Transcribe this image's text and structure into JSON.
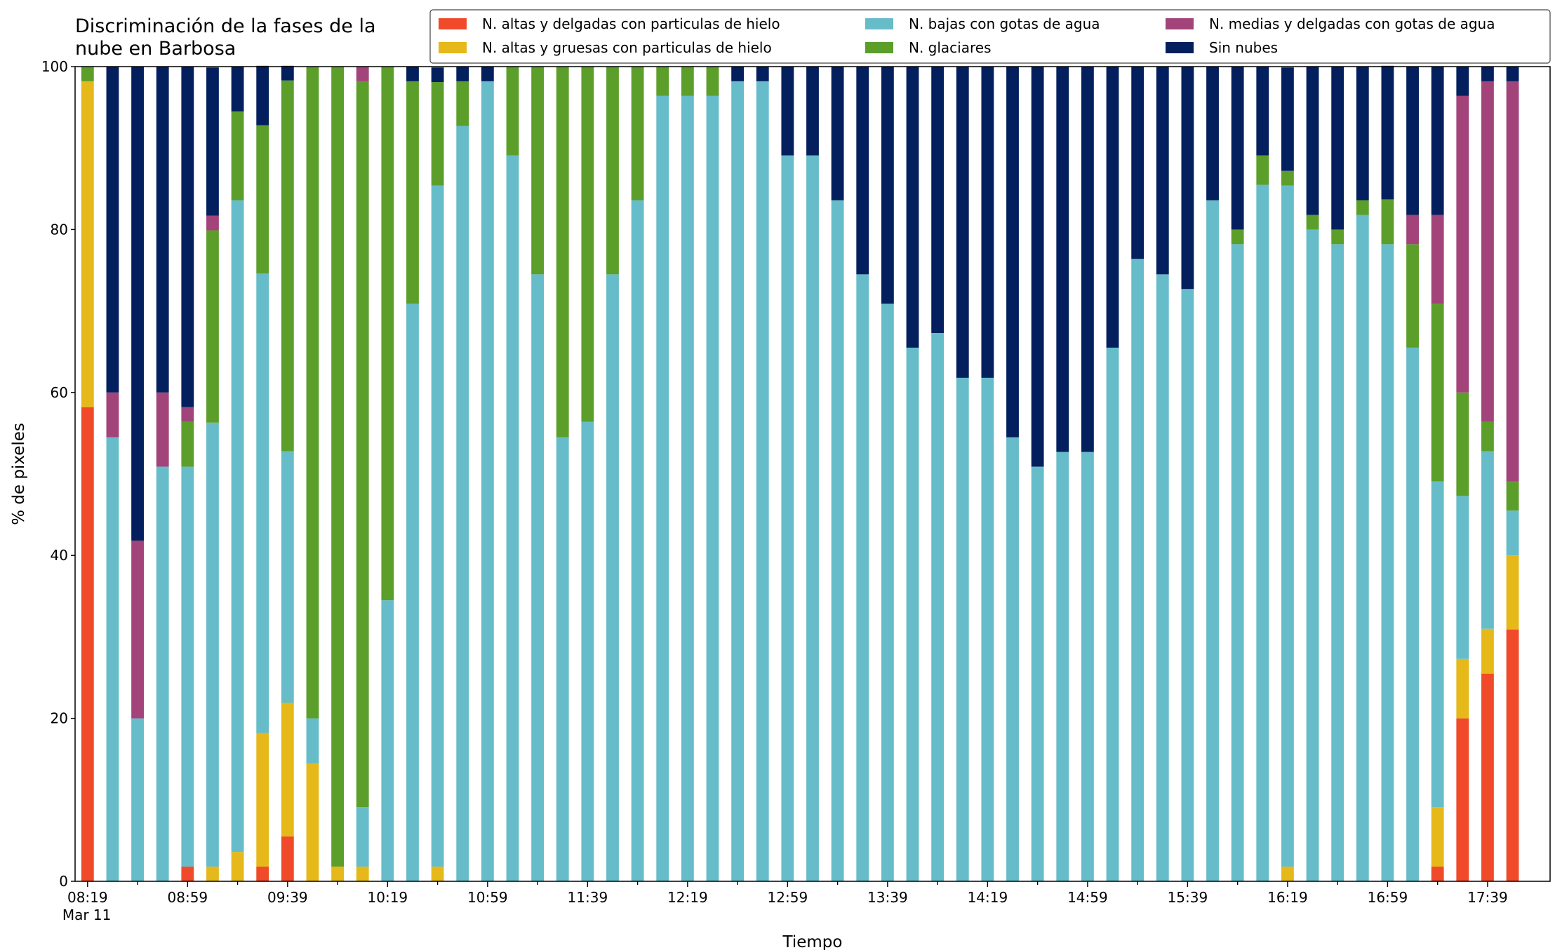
{
  "chart_data": {
    "type": "stacked_bar",
    "title": "Discriminación de la fases de la\nnube en Barbosa",
    "x_label": "Tiempo",
    "y_label": "% de pixeles",
    "date_label": "Mar 11",
    "categories": [
      "08:19",
      null,
      null,
      null,
      "08:59",
      null,
      null,
      null,
      "09:39",
      null,
      null,
      null,
      "10:19",
      null,
      null,
      null,
      "10:59",
      null,
      null,
      null,
      "11:39",
      null,
      null,
      null,
      "12:19",
      null,
      null,
      null,
      "12:59",
      null,
      null,
      null,
      "13:39",
      null,
      null,
      null,
      "14:19",
      null,
      null,
      null,
      "14:59",
      null,
      null,
      null,
      "15:39",
      null,
      null,
      null,
      "16:19",
      null,
      null,
      null,
      "16:59",
      null,
      null,
      null,
      "17:39",
      null
    ],
    "ylim": [
      0,
      100
    ],
    "yticks": [
      0,
      20,
      40,
      60,
      80,
      100
    ],
    "legend": "top-right",
    "series": [
      {
        "name": "N. altas y delgadas con particulas de hielo",
        "color": "#f04a2a",
        "values": [
          58.2,
          0,
          0,
          0,
          1.8,
          0,
          0,
          1.8,
          5.5,
          0,
          0,
          0,
          0,
          0,
          0,
          0,
          0,
          0,
          0,
          0,
          0,
          0,
          0,
          0,
          0,
          0,
          0,
          0,
          0,
          0,
          0,
          0,
          0,
          0,
          0,
          0,
          0,
          0,
          0,
          0,
          0,
          0,
          0,
          0,
          0,
          0,
          0,
          0,
          0,
          0,
          0,
          0,
          0,
          0,
          1.8,
          20,
          25.5,
          30.9
        ]
      },
      {
        "name": "N. altas y gruesas con particulas de hielo",
        "color": "#e6b81a",
        "values": [
          40,
          0,
          0,
          0,
          0,
          1.8,
          3.6,
          16.4,
          16.4,
          14.5,
          1.8,
          1.8,
          0,
          0,
          1.8,
          0,
          0,
          0,
          0,
          0,
          0,
          0,
          0,
          0,
          0,
          0,
          0,
          0,
          0,
          0,
          0,
          0,
          0,
          0,
          0,
          0,
          0,
          0,
          0,
          0,
          0,
          0,
          0,
          0,
          0,
          0,
          0,
          0,
          1.8,
          0,
          0,
          0,
          0,
          0,
          7.3,
          7.3,
          5.5,
          9.1
        ]
      },
      {
        "name": "N. bajas con gotas de agua",
        "color": "#66bcc9",
        "values": [
          0,
          54.5,
          20,
          50.9,
          49.1,
          54.5,
          80,
          56.4,
          30.9,
          5.5,
          0,
          7.3,
          34.5,
          70.9,
          83.6,
          92.7,
          98.2,
          89.1,
          74.5,
          54.5,
          56.4,
          74.5,
          83.6,
          96.4,
          96.4,
          96.4,
          98.2,
          98.2,
          89.1,
          89.1,
          83.6,
          74.5,
          70.9,
          65.5,
          67.3,
          61.8,
          61.8,
          54.5,
          50.9,
          52.7,
          52.7,
          65.5,
          76.4,
          74.5,
          72.7,
          83.6,
          78.2,
          85.5,
          83.6,
          80,
          78.2,
          81.8,
          78.2,
          65.5,
          40,
          20,
          21.8,
          5.5
        ]
      },
      {
        "name": "N. glaciares",
        "color": "#5c9e2a",
        "values": [
          1.8,
          0,
          0,
          0,
          5.5,
          23.6,
          10.9,
          18.2,
          45.5,
          80,
          98.2,
          89.1,
          65.5,
          27.3,
          12.7,
          5.5,
          0,
          10.9,
          25.5,
          45.5,
          43.6,
          25.5,
          16.4,
          3.6,
          3.6,
          3.6,
          0,
          0,
          0,
          0,
          0,
          0,
          0,
          0,
          0,
          0,
          0,
          0,
          0,
          0,
          0,
          0,
          0,
          0,
          0,
          0,
          1.8,
          3.6,
          1.8,
          1.8,
          1.8,
          1.8,
          5.5,
          12.7,
          21.8,
          12.7,
          3.6,
          3.6
        ]
      },
      {
        "name": "N. medias y delgadas con gotas de agua",
        "color": "#a2437a",
        "values": [
          0,
          5.5,
          21.8,
          9.1,
          1.8,
          1.8,
          0,
          0,
          0,
          0,
          0,
          1.8,
          0,
          0,
          0,
          0,
          0,
          0,
          0,
          0,
          0,
          0,
          0,
          0,
          0,
          0,
          0,
          0,
          0,
          0,
          0,
          0,
          0,
          0,
          0,
          0,
          0,
          0,
          0,
          0,
          0,
          0,
          0,
          0,
          0,
          0,
          0,
          0,
          0,
          0,
          0,
          0,
          0,
          3.6,
          10.9,
          36.4,
          41.8,
          49.1
        ]
      },
      {
        "name": "Sin nubes",
        "color": "#031f5e",
        "values": [
          0,
          40,
          58.2,
          40,
          41.8,
          18.2,
          5.5,
          7.3,
          1.8,
          0,
          0,
          0,
          0,
          1.8,
          1.8,
          1.8,
          1.8,
          0,
          0,
          0,
          0,
          0,
          0,
          0,
          0,
          0,
          1.8,
          1.8,
          10.9,
          10.9,
          16.4,
          25.5,
          29.1,
          34.5,
          32.7,
          38.2,
          38.2,
          45.5,
          49.1,
          47.3,
          47.3,
          34.5,
          23.6,
          25.5,
          27.3,
          16.4,
          20,
          10.9,
          12.7,
          18.2,
          20,
          16.4,
          16.4,
          18.2,
          18.2,
          3.6,
          1.8,
          1.8
        ]
      }
    ]
  }
}
